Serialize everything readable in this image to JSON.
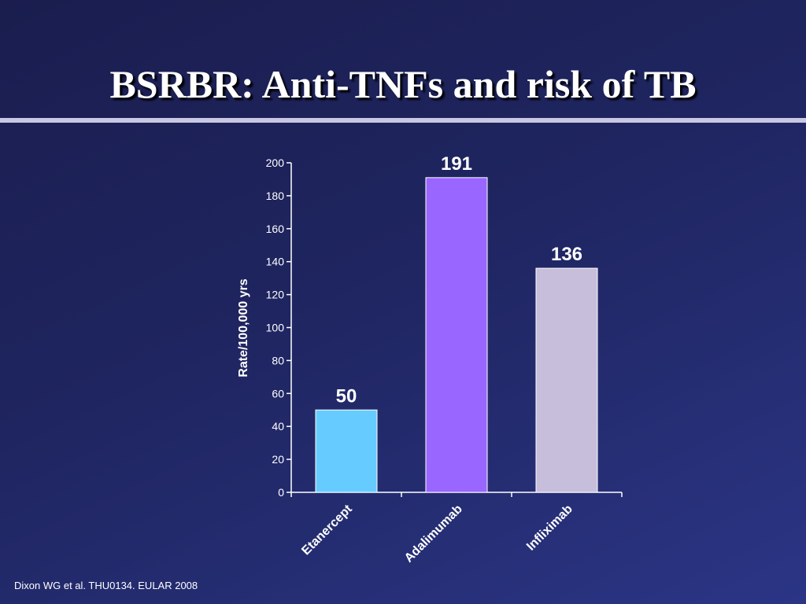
{
  "slide": {
    "title": "BSRBR: Anti-TNFs and risk of TB",
    "footer": "Dixon WG et al. THU0134. EULAR 2008"
  },
  "chart_data": {
    "type": "bar",
    "categories": [
      "Etanercept",
      "Adalimumab",
      "Infliximab"
    ],
    "values": [
      50,
      191,
      136
    ],
    "colors": [
      "#66ccff",
      "#9966ff",
      "#c7bedb"
    ],
    "data_labels": [
      "50",
      "191",
      "136"
    ],
    "ylabel": "Rate/100,000 yrs",
    "ylim": [
      0,
      200
    ],
    "yticks": [
      0,
      20,
      40,
      60,
      80,
      100,
      120,
      140,
      160,
      180,
      200
    ],
    "grid": false,
    "legend": false
  }
}
